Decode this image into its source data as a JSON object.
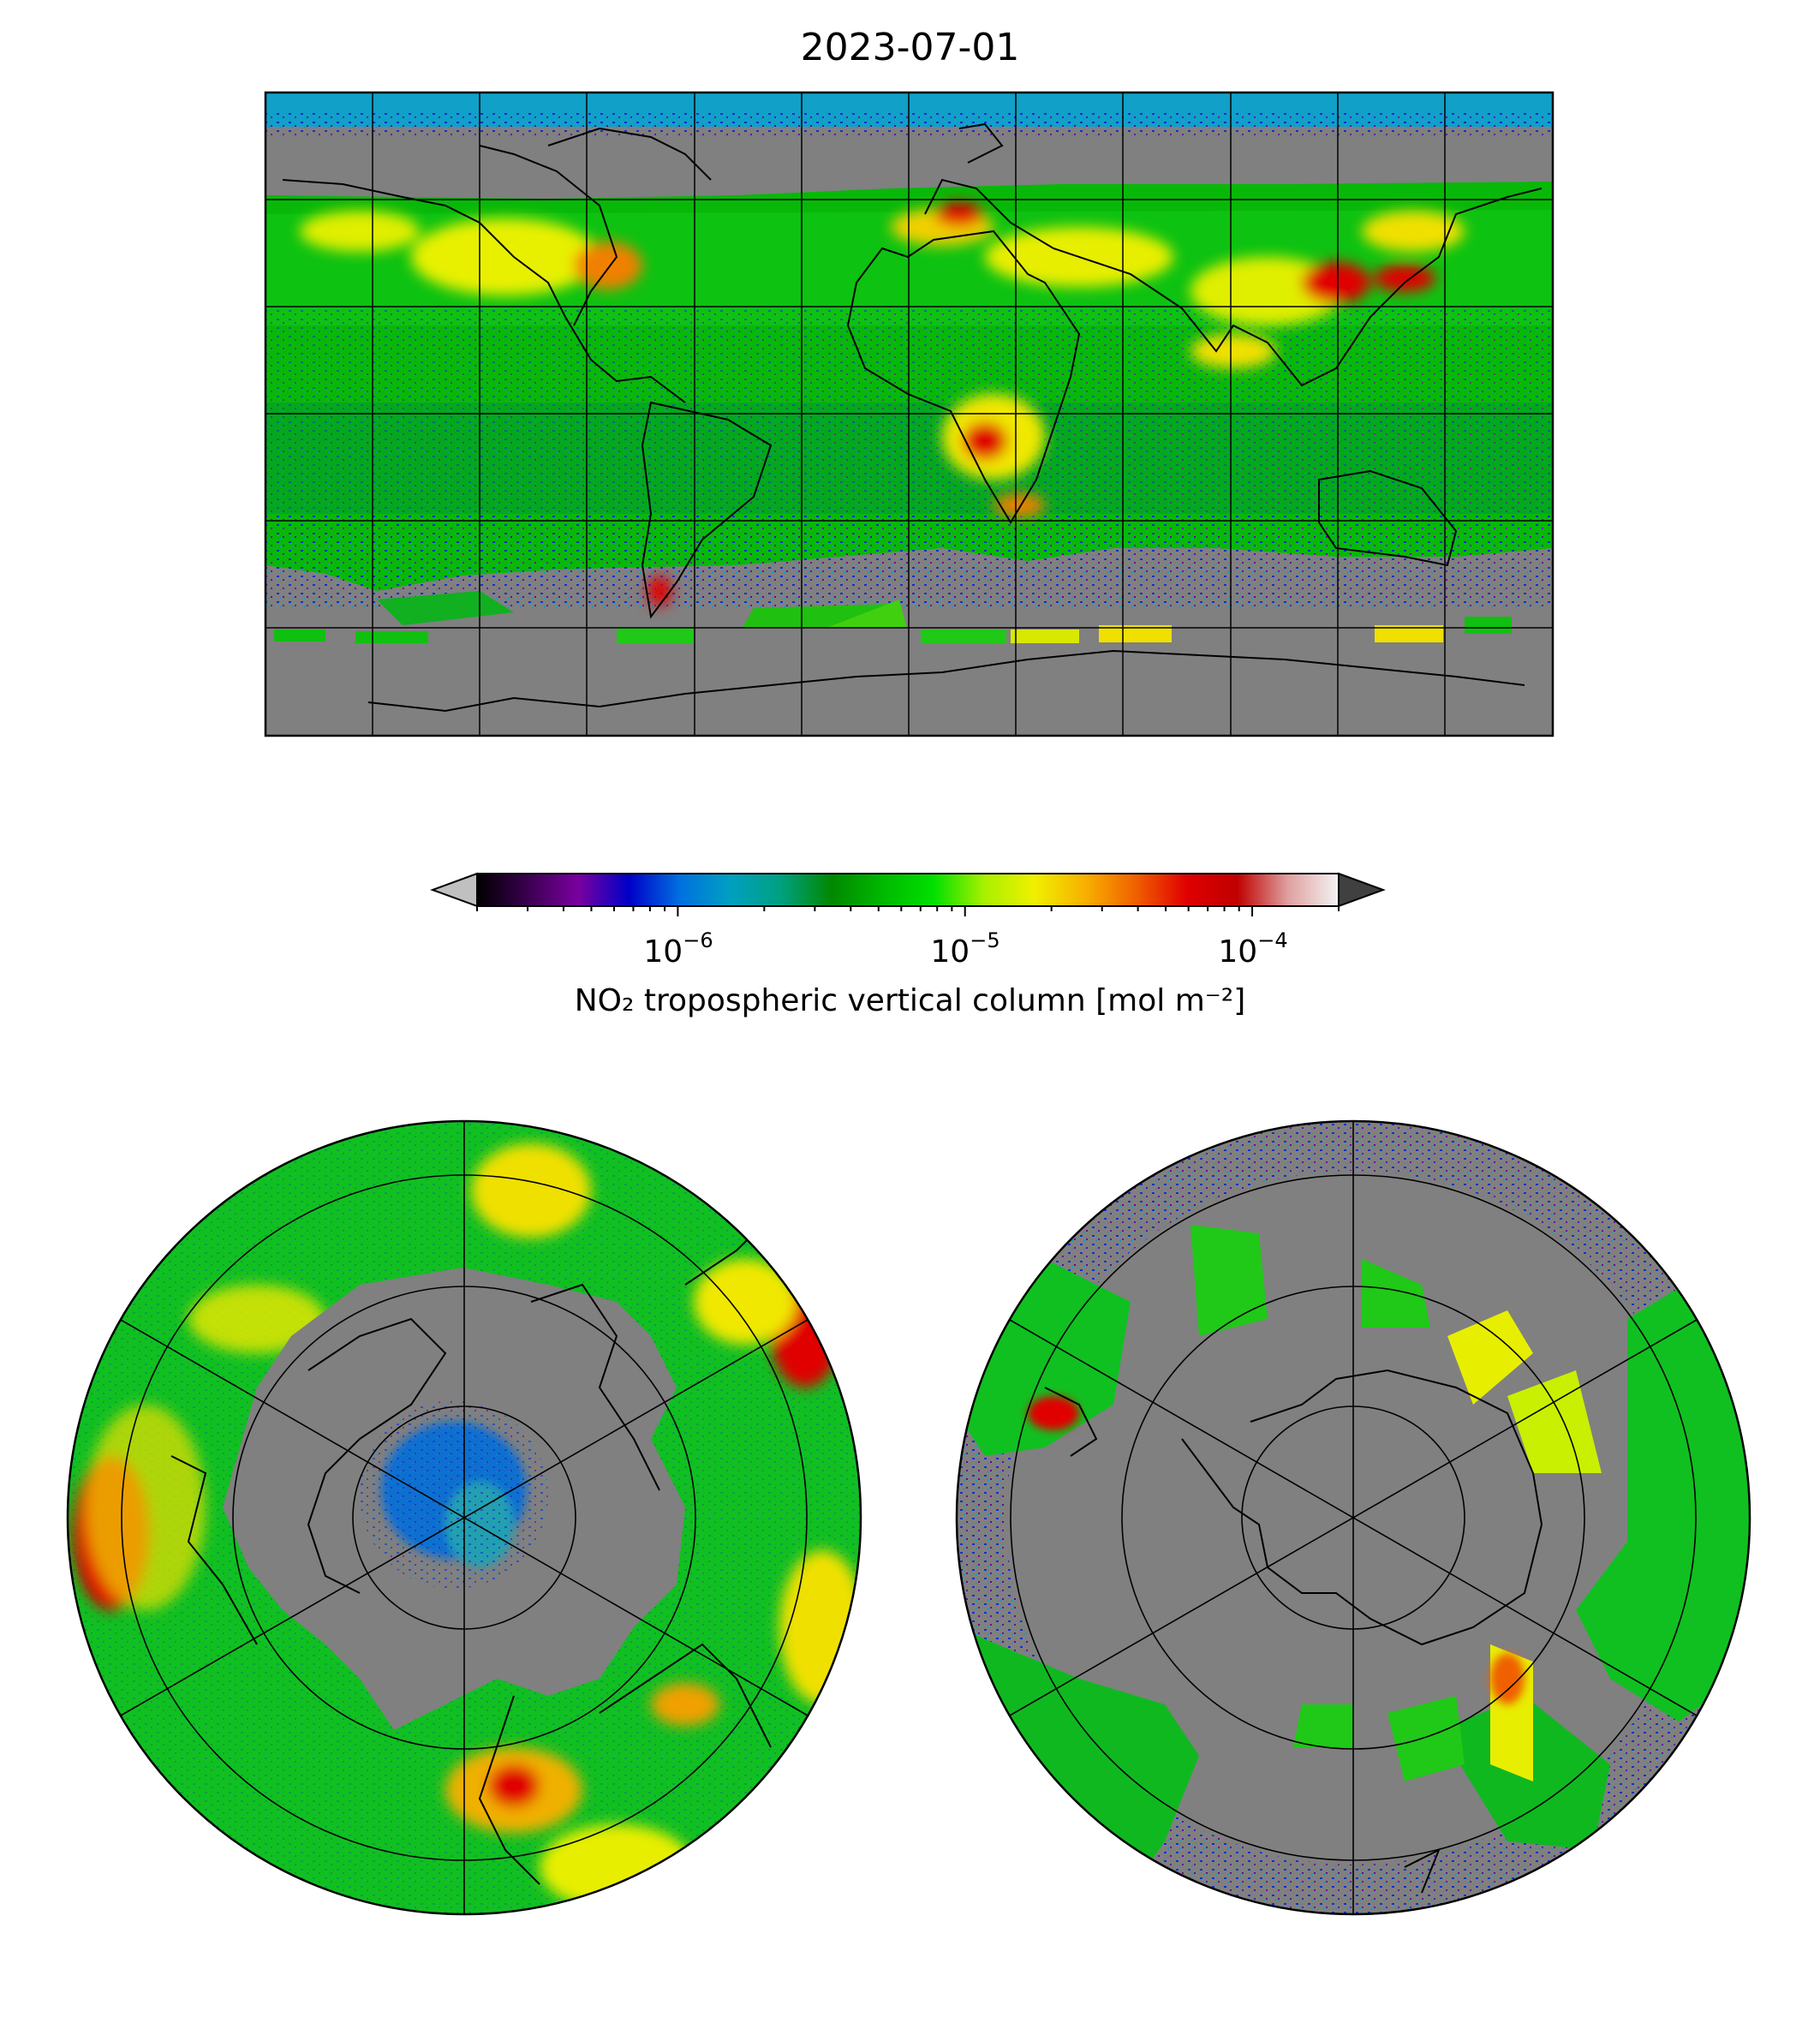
{
  "title": "2023-07-01",
  "colorbar": {
    "label": "NO₂ tropospheric vertical column [mol m⁻²]",
    "scale": "log",
    "range": [
      2e-07,
      0.0002
    ],
    "ticks": [
      {
        "value": 1e-06,
        "base": "10",
        "exp": "−6"
      },
      {
        "value": 1e-05,
        "base": "10",
        "exp": "−5"
      },
      {
        "value": 0.0001,
        "base": "10",
        "exp": "−4"
      }
    ],
    "extend": "both",
    "under_color": "#c0c0c0",
    "over_color": "#404040",
    "stops": [
      "#000000",
      "#3a0050",
      "#7a00a0",
      "#0000c8",
      "#0070e0",
      "#00a0c0",
      "#00a080",
      "#008800",
      "#00b800",
      "#00e000",
      "#a8f000",
      "#f0f000",
      "#f8b000",
      "#f06000",
      "#e00000",
      "#c00000",
      "#e0a0a0",
      "#f4f4f4"
    ]
  },
  "maps": [
    {
      "name": "global",
      "projection": "plate-carree",
      "gridlines": true,
      "land_no_data_color": "#808080"
    },
    {
      "name": "north-polar",
      "projection": "polar-stereographic-north",
      "gridlines": true
    },
    {
      "name": "south-polar",
      "projection": "polar-stereographic-south",
      "gridlines": true
    }
  ]
}
